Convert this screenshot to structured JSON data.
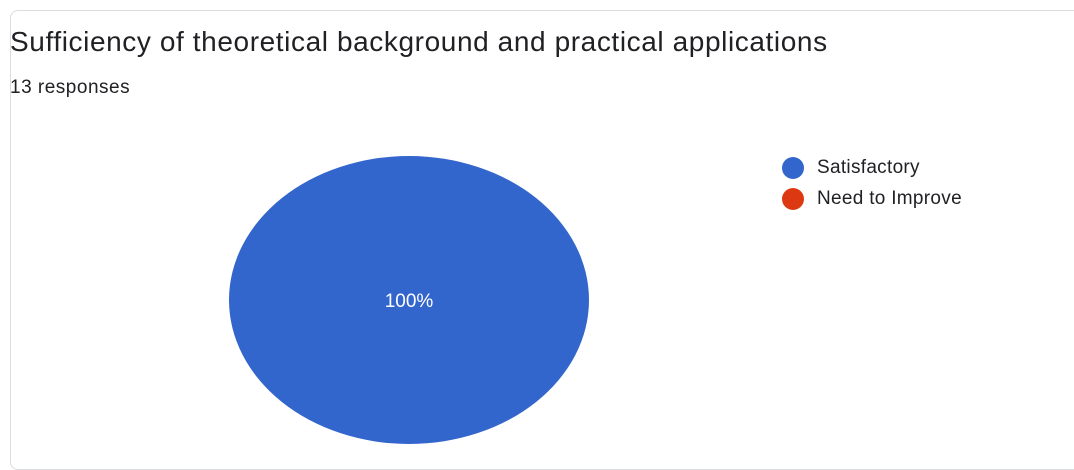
{
  "title": "Sufficiency of theoretical background and practical applications",
  "subtitle": "13 responses",
  "chart_data": {
    "type": "pie",
    "title": "Sufficiency of theoretical background and practical applications",
    "total_responses": 13,
    "slices": [
      {
        "label": "Satisfactory",
        "value": 100,
        "display": "100%",
        "color": "#3366cc"
      },
      {
        "label": "Need to Improve",
        "value": 0,
        "display": "",
        "color": "#dc3912"
      }
    ],
    "legend_position": "right"
  }
}
